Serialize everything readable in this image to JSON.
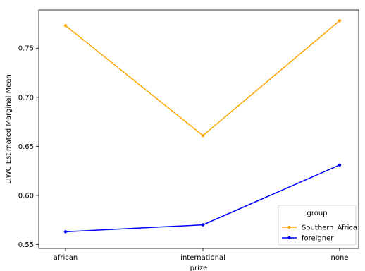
{
  "chart_data": {
    "type": "line",
    "categories": [
      "african",
      "international",
      "none"
    ],
    "series": [
      {
        "name": "Southern_Africa",
        "color": "#FFA500",
        "values": [
          0.773,
          0.661,
          0.778
        ]
      },
      {
        "name": "foreigner",
        "color": "#0000FF",
        "values": [
          0.563,
          0.57,
          0.631
        ]
      }
    ],
    "xlabel": "prize",
    "ylabel": "LIWC Estimated Marginal Mean",
    "ylim": [
      0.546,
      0.789
    ],
    "yticks": [
      "0.55",
      "0.60",
      "0.65",
      "0.70",
      "0.75"
    ],
    "legend": {
      "title": "group",
      "position": "lower-right"
    },
    "grid": false
  }
}
